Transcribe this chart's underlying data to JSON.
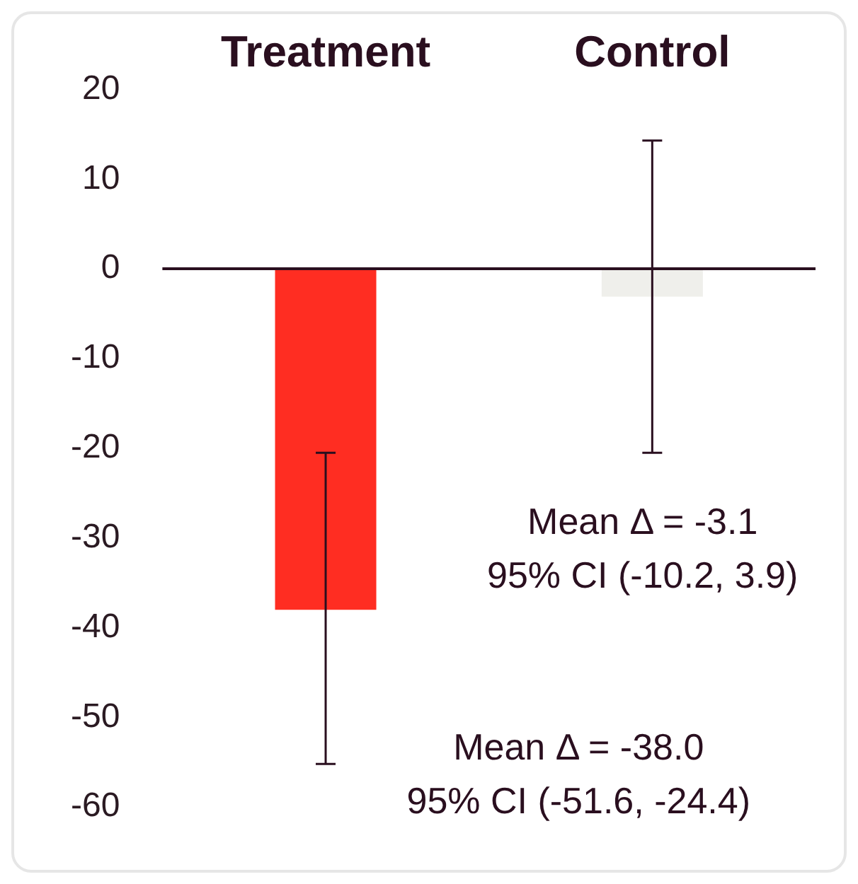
{
  "chart_data": {
    "type": "bar",
    "categories": [
      "Treatment",
      "Control"
    ],
    "values": [
      -38.0,
      -3.1
    ],
    "colors": [
      "#ff2d22",
      "#efefeb"
    ],
    "errors": [
      [
        -55.2,
        -20.5
      ],
      [
        -20.5,
        14.3
      ]
    ],
    "ylim": [
      -60,
      20
    ],
    "yticks": [
      -60,
      -50,
      -40,
      -30,
      -20,
      -10,
      0,
      10,
      20
    ],
    "grid": false,
    "ref_lines": [
      {
        "axis": "y",
        "value": 0,
        "color": "#2a0f1f"
      }
    ],
    "annotations": [
      "Mean Δ = -38.0\n95% CI (-51.6, -24.4)",
      "Mean Δ = -3.1\n95% CI (-10.2, 3.9)"
    ]
  }
}
